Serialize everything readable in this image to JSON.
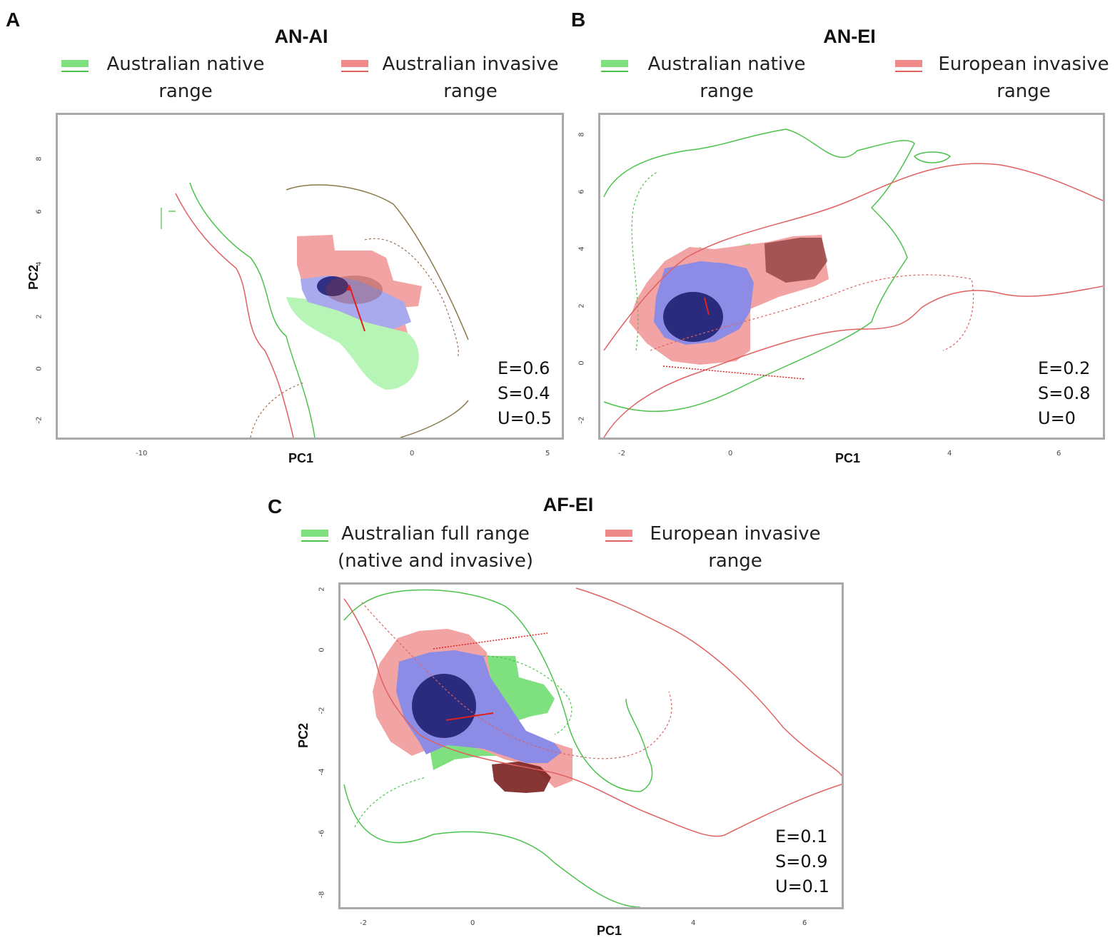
{
  "colors": {
    "native_fill": "#7ee07e",
    "native_line": "#4cc24c",
    "invasive_fill": "#ee8a8a",
    "invasive_line": "#e06060",
    "overlap": "#3a3aa8",
    "frame": "#a9a9a9"
  },
  "panels": [
    {
      "letter": "A",
      "title": "AN-AI",
      "legend": [
        {
          "label_line1": "Australian native",
          "label_line2": "range"
        },
        {
          "label_line1": "Australian invasive",
          "label_line2": "range"
        }
      ],
      "xlabel": "PC1",
      "ylabel": "PC2",
      "xticks": [
        "-10",
        "0",
        "5"
      ],
      "yticks": [
        "8",
        "6",
        "4",
        "2",
        "0",
        "-2"
      ],
      "stats": [
        "E=0.6",
        "S=0.4",
        "U=0.5"
      ]
    },
    {
      "letter": "B",
      "title": "AN-EI",
      "legend": [
        {
          "label_line1": "Australian native",
          "label_line2": "range"
        },
        {
          "label_line1": "European invasive",
          "label_line2": "range"
        }
      ],
      "xlabel": "PC1",
      "ylabel": "",
      "xticks": [
        "-2",
        "0",
        "4",
        "6"
      ],
      "yticks": [
        "8",
        "6",
        "4",
        "2",
        "0",
        "-2"
      ],
      "stats": [
        "E=0.2",
        "S=0.8",
        "U=0"
      ]
    },
    {
      "letter": "C",
      "title": "AF-EI",
      "legend": [
        {
          "label_line1": "Australian full range",
          "label_line2": "(native and invasive)"
        },
        {
          "label_line1": "European invasive",
          "label_line2": "range"
        }
      ],
      "xlabel": "PC1",
      "ylabel": "PC2",
      "xticks": [
        "-2",
        "0",
        "4",
        "6"
      ],
      "yticks": [
        "2",
        "0",
        "-2",
        "-4",
        "-6",
        "-8"
      ],
      "stats": [
        "E=0.1",
        "S=0.9",
        "U=0.1"
      ]
    }
  ],
  "chart_data": [
    {
      "type": "other",
      "title": "AN-AI",
      "xlabel": "PC1",
      "ylabel": "PC2",
      "xlim": [
        -10,
        5
      ],
      "ylim": [
        -2,
        8
      ],
      "series": [
        {
          "name": "Australian native range"
        },
        {
          "name": "Australian invasive range"
        }
      ],
      "annotations": {
        "E": 0.6,
        "S": 0.4,
        "U": 0.5
      }
    },
    {
      "type": "other",
      "title": "AN-EI",
      "xlabel": "PC1",
      "ylabel": "",
      "xlim": [
        -2,
        6
      ],
      "ylim": [
        -2,
        8
      ],
      "series": [
        {
          "name": "Australian native range"
        },
        {
          "name": "European invasive range"
        }
      ],
      "annotations": {
        "E": 0.2,
        "S": 0.8,
        "U": 0
      }
    },
    {
      "type": "other",
      "title": "AF-EI",
      "xlabel": "PC1",
      "ylabel": "PC2",
      "xlim": [
        -2,
        6
      ],
      "ylim": [
        -8,
        2
      ],
      "series": [
        {
          "name": "Australian full range (native and invasive)"
        },
        {
          "name": "European invasive range"
        }
      ],
      "annotations": {
        "E": 0.1,
        "S": 0.9,
        "U": 0.1
      }
    }
  ]
}
